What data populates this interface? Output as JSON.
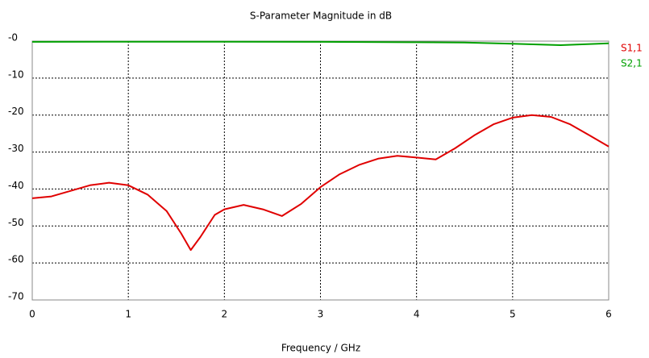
{
  "chart_data": {
    "type": "line",
    "title": "S-Parameter Magnitude in dB",
    "x_label": "Frequency / GHz",
    "xlim": [
      0,
      6
    ],
    "xticks": [
      0,
      1,
      2,
      3,
      4,
      5,
      6
    ],
    "ylim": [
      -70,
      0
    ],
    "yticks": [
      {
        "value": 0,
        "label": "-0"
      },
      -10,
      -20,
      -30,
      -40,
      -50,
      -60,
      -70
    ],
    "grid": true,
    "legend": "right",
    "series": [
      {
        "name": "S1,1",
        "color": "#e00000",
        "x": [
          0,
          0.2,
          0.4,
          0.6,
          0.8,
          1.0,
          1.2,
          1.4,
          1.55,
          1.65,
          1.75,
          1.9,
          2.0,
          2.2,
          2.4,
          2.6,
          2.8,
          3.0,
          3.2,
          3.4,
          3.6,
          3.8,
          4.0,
          4.2,
          4.4,
          4.6,
          4.8,
          5.0,
          5.2,
          5.4,
          5.6,
          5.8,
          6.0
        ],
        "values": [
          -42.5,
          -42,
          -40.5,
          -39,
          -38.3,
          -39,
          -41.5,
          -46,
          -52,
          -56.5,
          -53,
          -47,
          -45.5,
          -44.3,
          -45.5,
          -47.3,
          -44,
          -39.5,
          -36,
          -33.5,
          -31.8,
          -31,
          -31.5,
          -32,
          -29,
          -25.5,
          -22.5,
          -20.7,
          -20,
          -20.5,
          -22.5,
          -25.5,
          -28.5
        ]
      },
      {
        "name": "S2,1",
        "color": "#00a000",
        "x": [
          0,
          1,
          2,
          3,
          4,
          4.5,
          5,
          5.5,
          6
        ],
        "values": [
          -0.2,
          -0.15,
          -0.15,
          -0.2,
          -0.3,
          -0.4,
          -0.7,
          -1.1,
          -0.6
        ]
      }
    ]
  }
}
